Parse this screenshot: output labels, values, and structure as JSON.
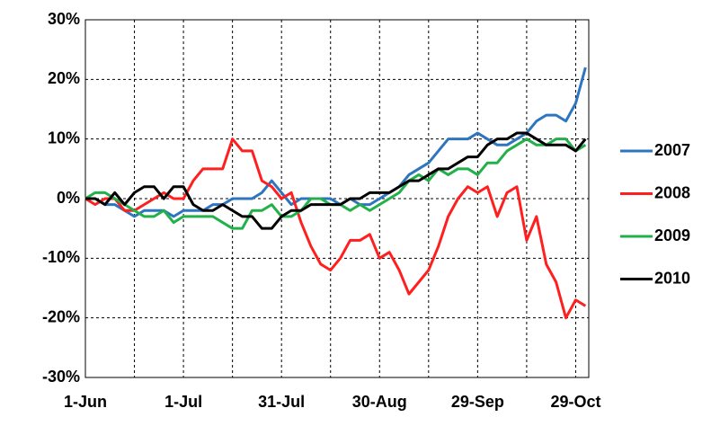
{
  "chart_data": {
    "type": "line",
    "x": [
      0,
      3,
      6,
      9,
      12,
      15,
      18,
      21,
      24,
      27,
      30,
      33,
      36,
      39,
      42,
      45,
      48,
      51,
      54,
      57,
      60,
      63,
      66,
      69,
      72,
      75,
      78,
      81,
      84,
      87,
      90,
      93,
      96,
      99,
      102,
      105,
      108,
      111,
      114,
      117,
      120,
      123,
      126,
      129,
      132,
      135,
      138,
      141,
      144,
      147,
      150,
      153
    ],
    "series": [
      {
        "name": "2007",
        "color": "#2e75c0",
        "values": [
          0,
          0,
          -1,
          -1,
          -2,
          -3,
          -2,
          -2,
          -2,
          -3,
          -2,
          -2,
          -2,
          -1,
          -1,
          0,
          0,
          0,
          1,
          3,
          1,
          -1,
          0,
          0,
          0,
          0,
          -1,
          0,
          -1,
          -1,
          0,
          1,
          2,
          4,
          5,
          6,
          8,
          10,
          10,
          10,
          11,
          10,
          9,
          9,
          10,
          11,
          13,
          14,
          14,
          13,
          16,
          22
        ]
      },
      {
        "name": "2008",
        "color": "#ff1f1f",
        "values": [
          0,
          -1,
          0,
          0,
          -2,
          -2,
          -1,
          0,
          1,
          0,
          0,
          3,
          5,
          5,
          5,
          10,
          8,
          8,
          3,
          2,
          0,
          1,
          -4,
          -8,
          -11,
          -12,
          -10,
          -7,
          -7,
          -6,
          -10,
          -9,
          -12,
          -16,
          -14,
          -12,
          -8,
          -3,
          0,
          2,
          1,
          2,
          -3,
          1,
          2,
          -7,
          -3,
          -11,
          -14,
          -20,
          -17,
          -18
        ]
      },
      {
        "name": "2009",
        "color": "#22b04a",
        "values": [
          0,
          1,
          1,
          0,
          -1,
          -2,
          -3,
          -3,
          -2,
          -4,
          -3,
          -3,
          -3,
          -3,
          -4,
          -5,
          -5,
          -2,
          -2,
          -1,
          -3,
          -3,
          -2,
          0,
          0,
          -1,
          -1,
          -2,
          -1,
          -2,
          -1,
          0,
          1,
          3,
          4,
          3,
          5,
          4,
          5,
          5,
          4,
          6,
          6,
          8,
          9,
          10,
          9,
          9,
          10,
          10,
          8,
          9
        ]
      },
      {
        "name": "2010",
        "color": "#000000",
        "values": [
          0,
          0,
          -1,
          1,
          -1,
          1,
          2,
          2,
          0,
          2,
          2,
          -1,
          -2,
          -2,
          -1,
          -2,
          -3,
          -3,
          -5,
          -5,
          -3,
          -2,
          -2,
          -1,
          -1,
          -1,
          -1,
          0,
          0,
          1,
          1,
          1,
          2,
          3,
          3,
          4,
          5,
          5,
          6,
          7,
          7,
          9,
          10,
          10,
          11,
          11,
          10,
          9,
          9,
          9,
          8,
          10
        ]
      }
    ],
    "xlim": [
      0,
      154
    ],
    "xticks": [
      {
        "value": 0,
        "label": "1-Jun"
      },
      {
        "value": 30,
        "label": "1-Jul"
      },
      {
        "value": 60,
        "label": "31-Jul"
      },
      {
        "value": 90,
        "label": "30-Aug"
      },
      {
        "value": 120,
        "label": "29-Sep"
      },
      {
        "value": 150,
        "label": "29-Oct"
      }
    ],
    "xminor": [
      15,
      45,
      75,
      105,
      135
    ],
    "ylim": [
      -30,
      30
    ],
    "yticks": [
      {
        "value": -30,
        "label": "-30%"
      },
      {
        "value": -20,
        "label": "-20%"
      },
      {
        "value": -10,
        "label": "-10%"
      },
      {
        "value": 0,
        "label": "0%"
      },
      {
        "value": 10,
        "label": "10%"
      },
      {
        "value": 20,
        "label": "20%"
      },
      {
        "value": 30,
        "label": "30%"
      }
    ],
    "grid": true,
    "legend": "right"
  }
}
